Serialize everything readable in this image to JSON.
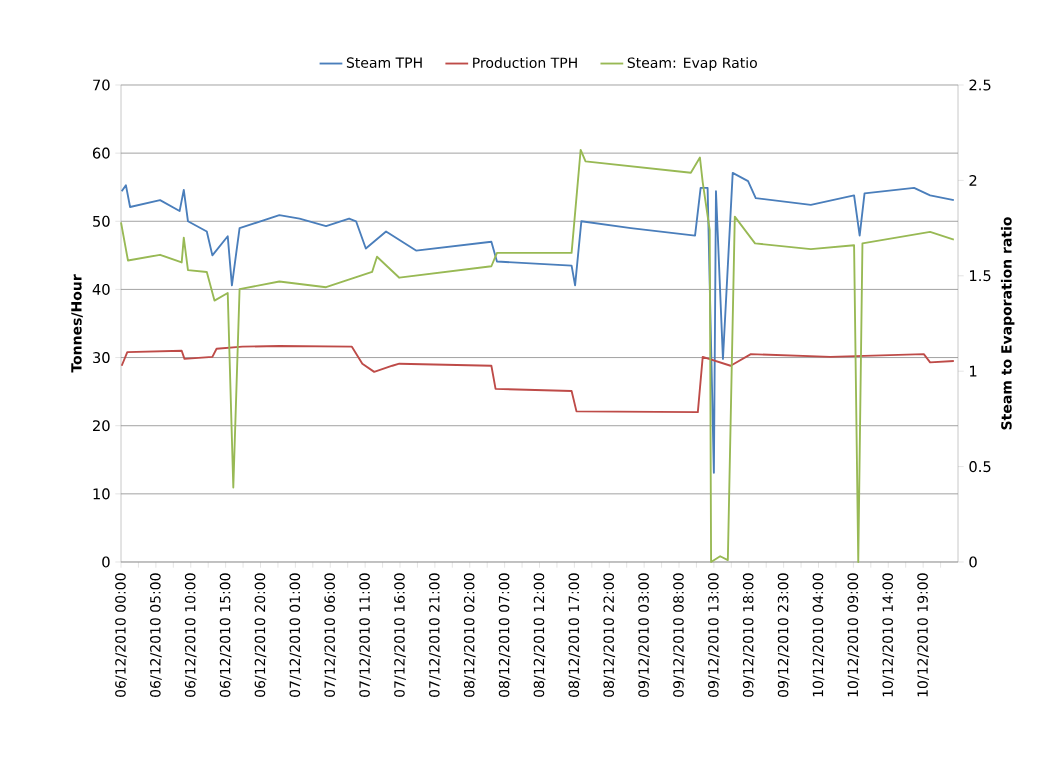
{
  "chart_data": {
    "type": "line",
    "ylabel": "Tonnes/Hour",
    "y2label": "Steam to Evaporation  ratio",
    "xlim": [
      "2010-12-06T00:00",
      "2010-12-11T00:00"
    ],
    "ylim": [
      0,
      70
    ],
    "yticks": [
      0,
      10,
      20,
      30,
      40,
      50,
      60,
      70
    ],
    "y2lim": [
      0,
      2.5
    ],
    "y2ticks": [
      0,
      0.5,
      1,
      1.5,
      2,
      2.5
    ],
    "xticks": [
      {
        "value": "2010-12-06T00:00",
        "label": "06/12/2010 00:00"
      },
      {
        "value": "2010-12-06T02:30",
        "label": null
      },
      {
        "value": "2010-12-06T05:00",
        "label": "06/12/2010 05:00"
      },
      {
        "value": "2010-12-06T07:30",
        "label": null
      },
      {
        "value": "2010-12-06T10:00",
        "label": "06/12/2010 10:00"
      },
      {
        "value": "2010-12-06T12:30",
        "label": null
      },
      {
        "value": "2010-12-06T15:00",
        "label": "06/12/2010 15:00"
      },
      {
        "value": "2010-12-06T17:30",
        "label": null
      },
      {
        "value": "2010-12-06T20:00",
        "label": "06/12/2010 20:00"
      },
      {
        "value": "2010-12-06T22:30",
        "label": null
      },
      {
        "value": "2010-12-07T01:00",
        "label": "07/12/2010 01:00"
      },
      {
        "value": "2010-12-07T03:30",
        "label": null
      },
      {
        "value": "2010-12-07T06:00",
        "label": "07/12/2010 06:00"
      },
      {
        "value": "2010-12-07T08:30",
        "label": null
      },
      {
        "value": "2010-12-07T11:00",
        "label": "07/12/2010 11:00"
      },
      {
        "value": "2010-12-07T13:30",
        "label": null
      },
      {
        "value": "2010-12-07T16:00",
        "label": "07/12/2010 16:00"
      },
      {
        "value": "2010-12-07T18:30",
        "label": null
      },
      {
        "value": "2010-12-07T21:00",
        "label": "07/12/2010 21:00"
      },
      {
        "value": "2010-12-07T23:30",
        "label": null
      },
      {
        "value": "2010-12-08T02:00",
        "label": "08/12/2010 02:00"
      },
      {
        "value": "2010-12-08T04:30",
        "label": null
      },
      {
        "value": "2010-12-08T07:00",
        "label": "08/12/2010 07:00"
      },
      {
        "value": "2010-12-08T09:30",
        "label": null
      },
      {
        "value": "2010-12-08T12:00",
        "label": "08/12/2010 12:00"
      },
      {
        "value": "2010-12-08T14:30",
        "label": null
      },
      {
        "value": "2010-12-08T17:00",
        "label": "08/12/2010 17:00"
      },
      {
        "value": "2010-12-08T19:30",
        "label": null
      },
      {
        "value": "2010-12-08T22:00",
        "label": "08/12/2010 22:00"
      },
      {
        "value": "2010-12-09T00:30",
        "label": null
      },
      {
        "value": "2010-12-09T03:00",
        "label": "09/12/2010 03:00"
      },
      {
        "value": "2010-12-09T05:30",
        "label": null
      },
      {
        "value": "2010-12-09T08:00",
        "label": "09/12/2010 08:00"
      },
      {
        "value": "2010-12-09T10:30",
        "label": null
      },
      {
        "value": "2010-12-09T13:00",
        "label": "09/12/2010 13:00"
      },
      {
        "value": "2010-12-09T15:30",
        "label": null
      },
      {
        "value": "2010-12-09T18:00",
        "label": "09/12/2010 18:00"
      },
      {
        "value": "2010-12-09T20:30",
        "label": null
      },
      {
        "value": "2010-12-09T23:00",
        "label": "09/12/2010 23:00"
      },
      {
        "value": "2010-12-10T01:30",
        "label": null
      },
      {
        "value": "2010-12-10T04:00",
        "label": "10/12/2010 04:00"
      },
      {
        "value": "2010-12-10T06:30",
        "label": null
      },
      {
        "value": "2010-12-10T09:00",
        "label": "10/12/2010 09:00"
      },
      {
        "value": "2010-12-10T11:30",
        "label": null
      },
      {
        "value": "2010-12-10T14:00",
        "label": "10/12/2010 14:00"
      },
      {
        "value": "2010-12-10T16:30",
        "label": null
      },
      {
        "value": "2010-12-10T19:00",
        "label": "10/12/2010 19:00"
      },
      {
        "value": "2010-12-10T21:30",
        "label": null
      }
    ],
    "grid": "y",
    "legend": "top",
    "series": [
      {
        "name": "Steam TPH",
        "color": "#4a7ebb",
        "x": [
          "2010-12-06T00:06",
          "2010-12-06T00:42",
          "2010-12-06T01:18",
          "2010-12-06T05:36",
          "2010-12-06T08:24",
          "2010-12-06T09:00",
          "2010-12-06T09:36",
          "2010-12-06T12:18",
          "2010-12-06T13:06",
          "2010-12-06T15:18",
          "2010-12-06T15:54",
          "2010-12-06T17:00",
          "2010-12-06T22:42",
          "2010-12-07T01:36",
          "2010-12-07T05:24",
          "2010-12-07T08:42",
          "2010-12-07T09:42",
          "2010-12-07T11:06",
          "2010-12-07T14:00",
          "2010-12-07T18:18",
          "2010-12-08T05:06",
          "2010-12-08T05:54",
          "2010-12-08T16:36",
          "2010-12-08T17:06",
          "2010-12-08T18:00",
          "2010-12-09T01:06",
          "2010-12-09T10:18",
          "2010-12-09T11:06",
          "2010-12-09T12:06",
          "2010-12-09T13:00",
          "2010-12-09T13:18",
          "2010-12-09T14:18",
          "2010-12-09T15:42",
          "2010-12-09T17:54",
          "2010-12-09T19:00",
          "2010-12-10T02:54",
          "2010-12-10T09:06",
          "2010-12-10T09:54",
          "2010-12-10T10:36",
          "2010-12-10T17:42",
          "2010-12-10T20:00",
          "2010-12-10T23:24"
        ],
        "values": [
          54.4,
          55.3,
          52.1,
          53.1,
          51.5,
          54.6,
          50.0,
          48.5,
          45.0,
          47.8,
          40.6,
          49.0,
          50.9,
          50.4,
          49.3,
          50.4,
          50.0,
          46.0,
          48.5,
          45.7,
          47.0,
          44.1,
          43.5,
          40.6,
          50.0,
          49.0,
          47.9,
          54.9,
          54.9,
          13.1,
          54.4,
          29.8,
          57.1,
          55.9,
          53.4,
          52.4,
          53.8,
          47.9,
          54.1,
          54.9,
          53.8,
          53.1
        ]
      },
      {
        "name": "Production TPH",
        "color": "#be4b48",
        "x": [
          "2010-12-06T00:06",
          "2010-12-06T00:54",
          "2010-12-06T08:42",
          "2010-12-06T09:06",
          "2010-12-06T13:06",
          "2010-12-06T13:42",
          "2010-12-06T17:24",
          "2010-12-06T22:42",
          "2010-12-07T09:06",
          "2010-12-07T10:36",
          "2010-12-07T12:18",
          "2010-12-07T14:54",
          "2010-12-07T15:54",
          "2010-12-08T05:06",
          "2010-12-08T05:42",
          "2010-12-08T16:36",
          "2010-12-08T17:18",
          "2010-12-09T10:42",
          "2010-12-09T11:24",
          "2010-12-09T15:24",
          "2010-12-09T18:18",
          "2010-12-10T05:42",
          "2010-12-10T19:06",
          "2010-12-10T20:00",
          "2010-12-10T23:24"
        ],
        "values": [
          28.8,
          30.8,
          31.0,
          29.8,
          30.1,
          31.3,
          31.6,
          31.7,
          31.6,
          29.1,
          27.9,
          28.8,
          29.1,
          28.8,
          25.4,
          25.1,
          22.1,
          22.0,
          30.1,
          28.8,
          30.5,
          30.1,
          30.5,
          29.3,
          29.5
        ]
      },
      {
        "name": "Steam: Evap Ratio",
        "color": "#98b954",
        "axis": "y2",
        "x": [
          "2010-12-06T00:00",
          "2010-12-06T01:00",
          "2010-12-06T05:36",
          "2010-12-06T08:42",
          "2010-12-06T09:00",
          "2010-12-06T09:36",
          "2010-12-06T12:18",
          "2010-12-06T13:24",
          "2010-12-06T15:18",
          "2010-12-06T16:06",
          "2010-12-06T17:00",
          "2010-12-06T22:42",
          "2010-12-07T05:24",
          "2010-12-07T12:00",
          "2010-12-07T12:42",
          "2010-12-07T15:54",
          "2010-12-08T05:06",
          "2010-12-08T05:54",
          "2010-12-08T16:36",
          "2010-12-08T17:54",
          "2010-12-08T18:36",
          "2010-12-09T09:42",
          "2010-12-09T11:00",
          "2010-12-09T11:24",
          "2010-12-09T12:24",
          "2010-12-09T12:36",
          "2010-12-09T13:54",
          "2010-12-09T15:00",
          "2010-12-09T16:00",
          "2010-12-09T18:54",
          "2010-12-10T02:54",
          "2010-12-10T09:06",
          "2010-12-10T09:42",
          "2010-12-10T10:18",
          "2010-12-10T20:00",
          "2010-12-10T23:24"
        ],
        "values": [
          1.78,
          1.58,
          1.61,
          1.57,
          1.7,
          1.53,
          1.52,
          1.37,
          1.41,
          0.39,
          1.43,
          1.47,
          1.44,
          1.52,
          1.6,
          1.49,
          1.55,
          1.62,
          1.62,
          2.16,
          2.1,
          2.04,
          2.12,
          1.99,
          1.74,
          0,
          0.03,
          0.01,
          1.81,
          1.67,
          1.64,
          1.66,
          0,
          1.67,
          1.73,
          1.69
        ]
      }
    ]
  }
}
